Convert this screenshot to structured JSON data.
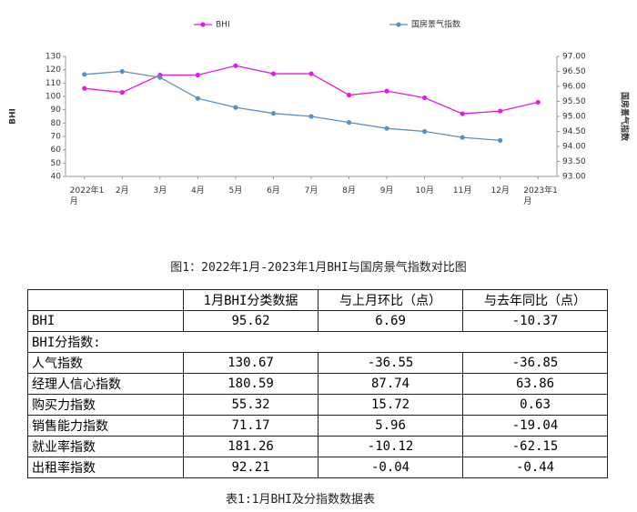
{
  "chart_data": {
    "type": "line",
    "legend_position": "top",
    "categories": [
      "2022年1月",
      "2月",
      "3月",
      "4月",
      "5月",
      "6月",
      "7月",
      "8月",
      "9月",
      "10月",
      "11月",
      "12月",
      "2023年1月"
    ],
    "series": [
      {
        "name": "BHI",
        "color": "#e619e6",
        "values": [
          106,
          103,
          116,
          116,
          123,
          117,
          117,
          101,
          104,
          99,
          87,
          89,
          95.62
        ]
      },
      {
        "name": "国房景气指数",
        "color": "#5b8fbf",
        "axis": "y2",
        "values": [
          96.4,
          96.5,
          96.3,
          95.6,
          95.3,
          95.1,
          95.0,
          94.8,
          94.6,
          94.5,
          94.3,
          94.2,
          null
        ]
      }
    ],
    "ylabel": "BHI",
    "y2label": "国房景气指数",
    "ylim": [
      40,
      130
    ],
    "yticks": [
      40,
      50,
      60,
      70,
      80,
      90,
      100,
      110,
      120,
      130
    ],
    "y2lim": [
      93,
      97
    ],
    "y2ticks": [
      {
        "value": 93,
        "label": "93.00"
      },
      {
        "value": 93.5,
        "label": "93.50"
      },
      {
        "value": 94,
        "label": "94.00"
      },
      {
        "value": 94.5,
        "label": "94.50"
      },
      {
        "value": 95,
        "label": "95.00"
      },
      {
        "value": 95.5,
        "label": "95.50"
      },
      {
        "value": 96,
        "label": "96.00"
      },
      {
        "value": 96.5,
        "label": "96.50"
      },
      {
        "value": 97,
        "label": "97.00"
      }
    ],
    "grid": false,
    "caption": "图1：2022年1月-2023年1月BHI与国房景气指数对比图"
  },
  "table": {
    "header": [
      "1月BHI分类数据",
      "与上月环比（点）",
      "与去年同比（点）"
    ],
    "rows": [
      [
        "BHI",
        95.62,
        6.69,
        -10.37
      ],
      [
        "BHI分指数:"
      ],
      [
        "人气指数",
        130.67,
        -36.55,
        -36.85
      ],
      [
        "经理人信心指数",
        180.59,
        87.74,
        63.86
      ],
      [
        "购买力指数",
        55.32,
        15.72,
        0.63
      ],
      [
        "销售能力指数",
        71.17,
        5.96,
        -19.04
      ],
      [
        "就业率指数",
        181.26,
        -10.12,
        -62.15
      ],
      [
        "出租率指数",
        92.21,
        -0.04,
        -0.44
      ]
    ],
    "caption": "表1:1月BHI及分指数数据表"
  }
}
